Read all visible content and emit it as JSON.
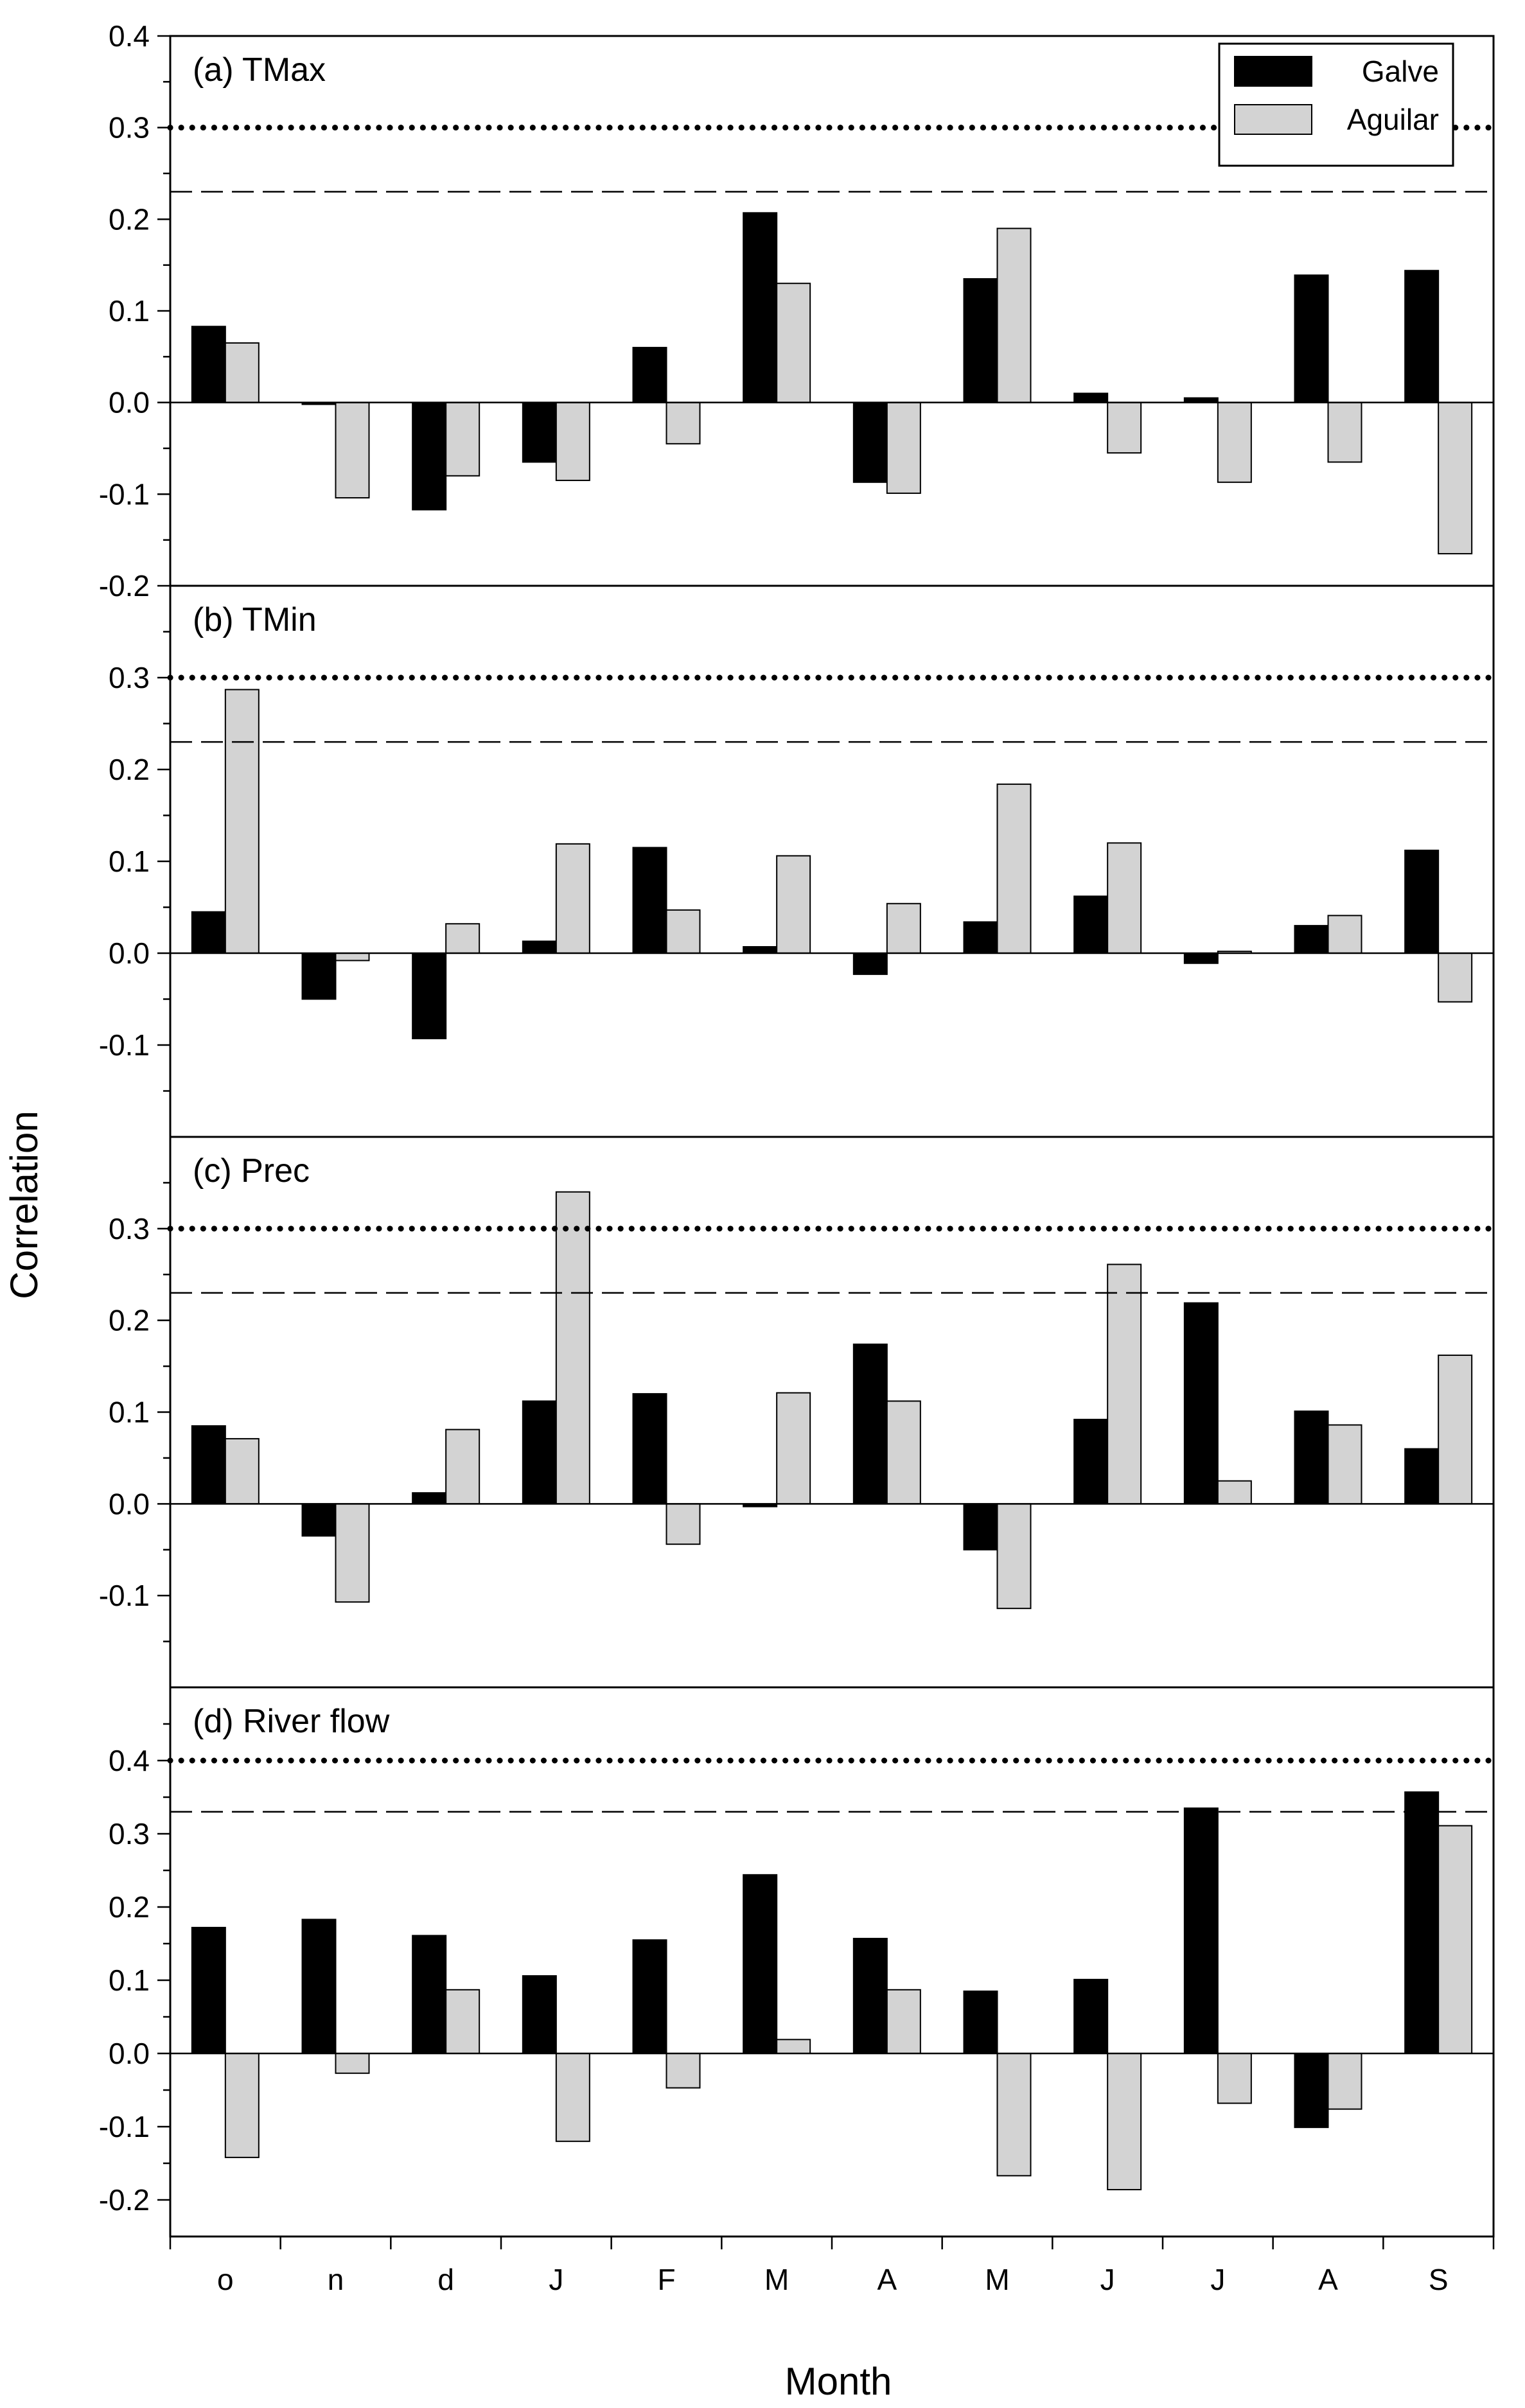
{
  "chart_data": {
    "type": "bar",
    "ylabel": "Correlation",
    "xlabel": "Month",
    "categories": [
      "o",
      "n",
      "d",
      "J",
      "F",
      "M",
      "A",
      "M",
      "J",
      "J",
      "A",
      "S"
    ],
    "legend": {
      "location": "top-right",
      "entries": [
        {
          "name": "Galve",
          "color": "#000000"
        },
        {
          "name": "Aguilar",
          "color": "#d3d3d3"
        }
      ]
    },
    "panels": [
      {
        "title": "(a) TMax",
        "ylim": [
          -0.2,
          0.4
        ],
        "yticks": [
          "-0.2",
          "-0.1",
          "0.0",
          "0.1",
          "0.2",
          "0.3",
          "0.4"
        ],
        "dotted_line": 0.3,
        "dashed_line": 0.23,
        "series": [
          {
            "name": "Galve",
            "values": [
              0.083,
              -0.002,
              -0.117,
              -0.065,
              0.06,
              0.207,
              -0.087,
              0.135,
              0.01,
              0.005,
              0.139,
              0.144
            ]
          },
          {
            "name": "Aguilar",
            "values": [
              0.065,
              -0.104,
              -0.08,
              -0.085,
              -0.045,
              0.13,
              -0.099,
              0.19,
              -0.055,
              -0.087,
              -0.065,
              -0.165
            ]
          }
        ]
      },
      {
        "title": "(b) TMin",
        "ylim": [
          -0.2,
          0.4
        ],
        "yticks": [
          "-0.1",
          "0.0",
          "0.1",
          "0.2",
          "0.3"
        ],
        "dotted_line": 0.3,
        "dashed_line": 0.23,
        "series": [
          {
            "name": "Galve",
            "values": [
              0.045,
              -0.05,
              -0.093,
              0.013,
              0.115,
              0.007,
              -0.023,
              0.034,
              0.062,
              -0.011,
              0.03,
              0.112
            ]
          },
          {
            "name": "Aguilar",
            "values": [
              0.287,
              -0.008,
              0.032,
              0.119,
              0.047,
              0.106,
              0.054,
              0.184,
              0.12,
              0.002,
              0.041,
              -0.053
            ]
          }
        ]
      },
      {
        "title": "(c) Prec",
        "ylim": [
          -0.2,
          0.4
        ],
        "yticks": [
          "-0.1",
          "0.0",
          "0.1",
          "0.2",
          "0.3"
        ],
        "dotted_line": 0.3,
        "dashed_line": 0.23,
        "series": [
          {
            "name": "Galve",
            "values": [
              0.085,
              -0.035,
              0.012,
              0.112,
              0.12,
              -0.003,
              0.174,
              -0.05,
              0.092,
              0.219,
              0.101,
              0.06
            ]
          },
          {
            "name": "Aguilar",
            "values": [
              0.071,
              -0.107,
              0.081,
              0.34,
              -0.044,
              0.121,
              0.112,
              -0.114,
              0.261,
              0.025,
              0.086,
              0.162
            ]
          }
        ]
      },
      {
        "title": "(d) River flow",
        "ylim": [
          -0.25,
          0.5
        ],
        "yticks": [
          "-0.2",
          "-0.1",
          "0.0",
          "0.1",
          "0.2",
          "0.3",
          "0.4"
        ],
        "dotted_line": 0.4,
        "dashed_line": 0.33,
        "series": [
          {
            "name": "Galve",
            "values": [
              0.172,
              0.183,
              0.161,
              0.106,
              0.155,
              0.244,
              0.157,
              0.085,
              0.101,
              0.335,
              -0.101,
              0.357
            ]
          },
          {
            "name": "Aguilar",
            "values": [
              -0.142,
              -0.027,
              0.087,
              -0.12,
              -0.047,
              0.019,
              0.087,
              -0.167,
              -0.186,
              -0.068,
              -0.076,
              0.311
            ]
          }
        ]
      }
    ]
  }
}
